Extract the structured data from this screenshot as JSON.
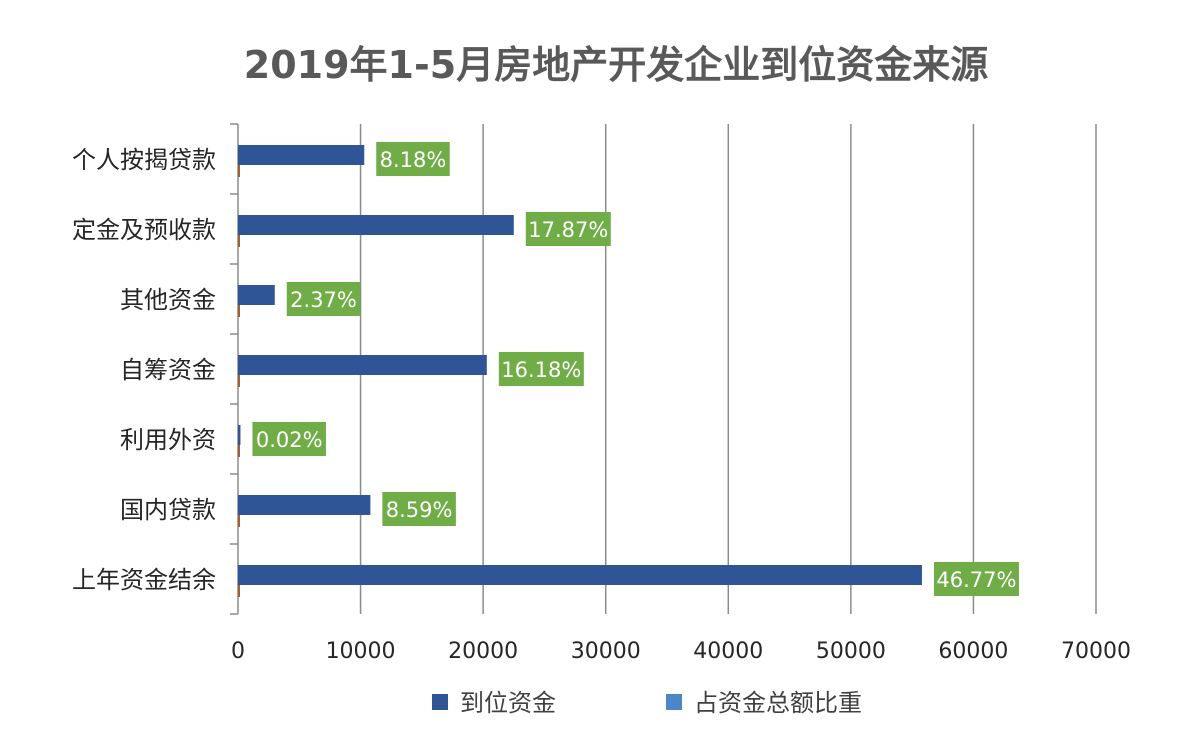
{
  "chart_data": {
    "type": "bar",
    "orientation": "horizontal",
    "title": "2019年1-5月房地产开发企业到位资金来源",
    "categories": [
      "个人按揭贷款",
      "定金及预收款",
      "其他资金",
      "自筹资金",
      "利用外资",
      "国内贷款",
      "上年资金结余"
    ],
    "series": [
      {
        "name": "到位资金",
        "color": "#2F5597",
        "values": [
          10300,
          22500,
          3000,
          20300,
          200,
          10800,
          55800
        ]
      },
      {
        "name": "占资金总额比重",
        "color": "#4A86C8",
        "values": [
          8.18,
          17.87,
          2.37,
          16.18,
          0.02,
          8.59,
          46.77
        ],
        "data_labels": [
          "8.18%",
          "17.87%",
          "2.37%",
          "16.18%",
          "0.02%",
          "8.59%",
          "46.77%"
        ],
        "label_color": "#70AD47"
      }
    ],
    "xlim": [
      0,
      70000
    ],
    "xticks": [
      "0",
      "10000",
      "20000",
      "30000",
      "40000",
      "50000",
      "60000",
      "70000"
    ],
    "grid": "vertical",
    "legend": "bottom"
  }
}
